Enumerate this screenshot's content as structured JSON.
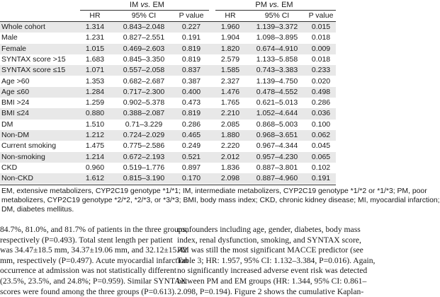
{
  "table": {
    "groups": [
      {
        "label_prefix": "IM ",
        "label_italic": "vs.",
        "label_suffix": " EM"
      },
      {
        "label_prefix": "PM ",
        "label_italic": "vs.",
        "label_suffix": " EM"
      }
    ],
    "columns": [
      "HR",
      "95% CI",
      "P value",
      "HR",
      "95% CI",
      "P value"
    ],
    "rows": [
      {
        "label": "Whole cohort",
        "cells": [
          "1.314",
          "0.843–2.048",
          "0.227",
          "1.960",
          "1.139–3.372",
          "0.015"
        ]
      },
      {
        "label": "Male",
        "cells": [
          "1.231",
          "0.827–2.551",
          "0.191",
          "1.904",
          "1.098–3.895",
          "0.018"
        ]
      },
      {
        "label": "Female",
        "cells": [
          "1.015",
          "0.469–2.603",
          "0.819",
          "1.820",
          "0.674–4.910",
          "0.009"
        ]
      },
      {
        "label": "SYNTAX score >15",
        "cells": [
          "1.683",
          "0.845–3.350",
          "0.819",
          "2.579",
          "1.133–5.858",
          "0.018"
        ]
      },
      {
        "label": "SYNTAX score ≤15",
        "cells": [
          "1.071",
          "0.557–2.058",
          "0.837",
          "1.585",
          "0.743–3.383",
          "0.233"
        ]
      },
      {
        "label": "Age >60",
        "cells": [
          "1.353",
          "0.682–2.687",
          "0.387",
          "2.327",
          "1.139–4.750",
          "0.020"
        ]
      },
      {
        "label": "Age ≤60",
        "cells": [
          "1.284",
          "0.717–2.300",
          "0.400",
          "1.476",
          "0.478–4.552",
          "0.498"
        ]
      },
      {
        "label": "BMI >24",
        "cells": [
          "1.259",
          "0.902–5.378",
          "0.473",
          "1.765",
          "0.621–5.013",
          "0.286"
        ]
      },
      {
        "label": "BMI ≤24",
        "cells": [
          "0.880",
          "0.388–2.087",
          "0.819",
          "2.210",
          "1.052–4.644",
          "0.036"
        ]
      },
      {
        "label": "DM",
        "cells": [
          "1.510",
          "0.71–3.229",
          "0.286",
          "2.085",
          "0.868–5.003",
          "0.100"
        ]
      },
      {
        "label": "Non-DM",
        "cells": [
          "1.212",
          "0.724–2.029",
          "0.465",
          "1.880",
          "0.968–3.651",
          "0.062"
        ]
      },
      {
        "label": "Current smoking",
        "cells": [
          "1.475",
          "0.775–2.586",
          "0.249",
          "2.220",
          "0.967–4.344",
          "0.045"
        ]
      },
      {
        "label": "Non-smoking",
        "cells": [
          "1.214",
          "0.672–2.193",
          "0.521",
          "2.012",
          "0.957–4.230",
          "0.065"
        ]
      },
      {
        "label": "CKD",
        "cells": [
          "0.960",
          "0.519–1.776",
          "0.897",
          "1.836",
          "0.887–3.801",
          "0.102"
        ]
      },
      {
        "label": "Non-CKD",
        "cells": [
          "1.612",
          "0.815–3.190",
          "0.170",
          "2.098",
          "0.887–4.960",
          "0.191"
        ]
      }
    ]
  },
  "footnote": [
    "EM, extensive metabolizers, CYP2C19 genotype *1/*1; IM, intermediate metabolizers, CYP2C19 genotype *1/*2 or *1/*3; PM, poor",
    "metabolizers, CYP2C19 genotype *2/*2, *2/*3, or *3/*3; BMI, body mass index; CKD, chronic kidney disease; MI, myocardial infarction;",
    "DM, diabetes mellitus."
  ],
  "body_left": [
    "84.7%, 81.0%, and 81.7% of patients in the three groups,",
    "respectively (P=0.493). Total stent length per patient",
    "was 34.47±18.5 mm, 34.37±19.06 mm, and 32.12±15.42",
    "mm, respectively (P=0.497). Acute myocardial infarction",
    "occurrence at admission was not statistically different",
    "(23.5%, 23.5%, and 24.8%; P=0.959). Similar SYNTAX",
    "scores were found among the three groups (P=0.613)."
  ],
  "body_right": [
    "confounders including age, gender, diabetes, body mass",
    "index, renal dysfunction, smoking, and SYNTAX score,",
    "PM was still the most significant MACCE predictor (see",
    "Table 3; HR: 1.957, 95% CI: 1.132–3.384, P=0.016). Again,",
    "no significantly increased adverse event risk was detected",
    "between PM and EM groups (HR: 1.344, 95% CI: 0.861–",
    "2.098, P=0.194). Figure 2 shows the cumulative Kaplan-"
  ]
}
